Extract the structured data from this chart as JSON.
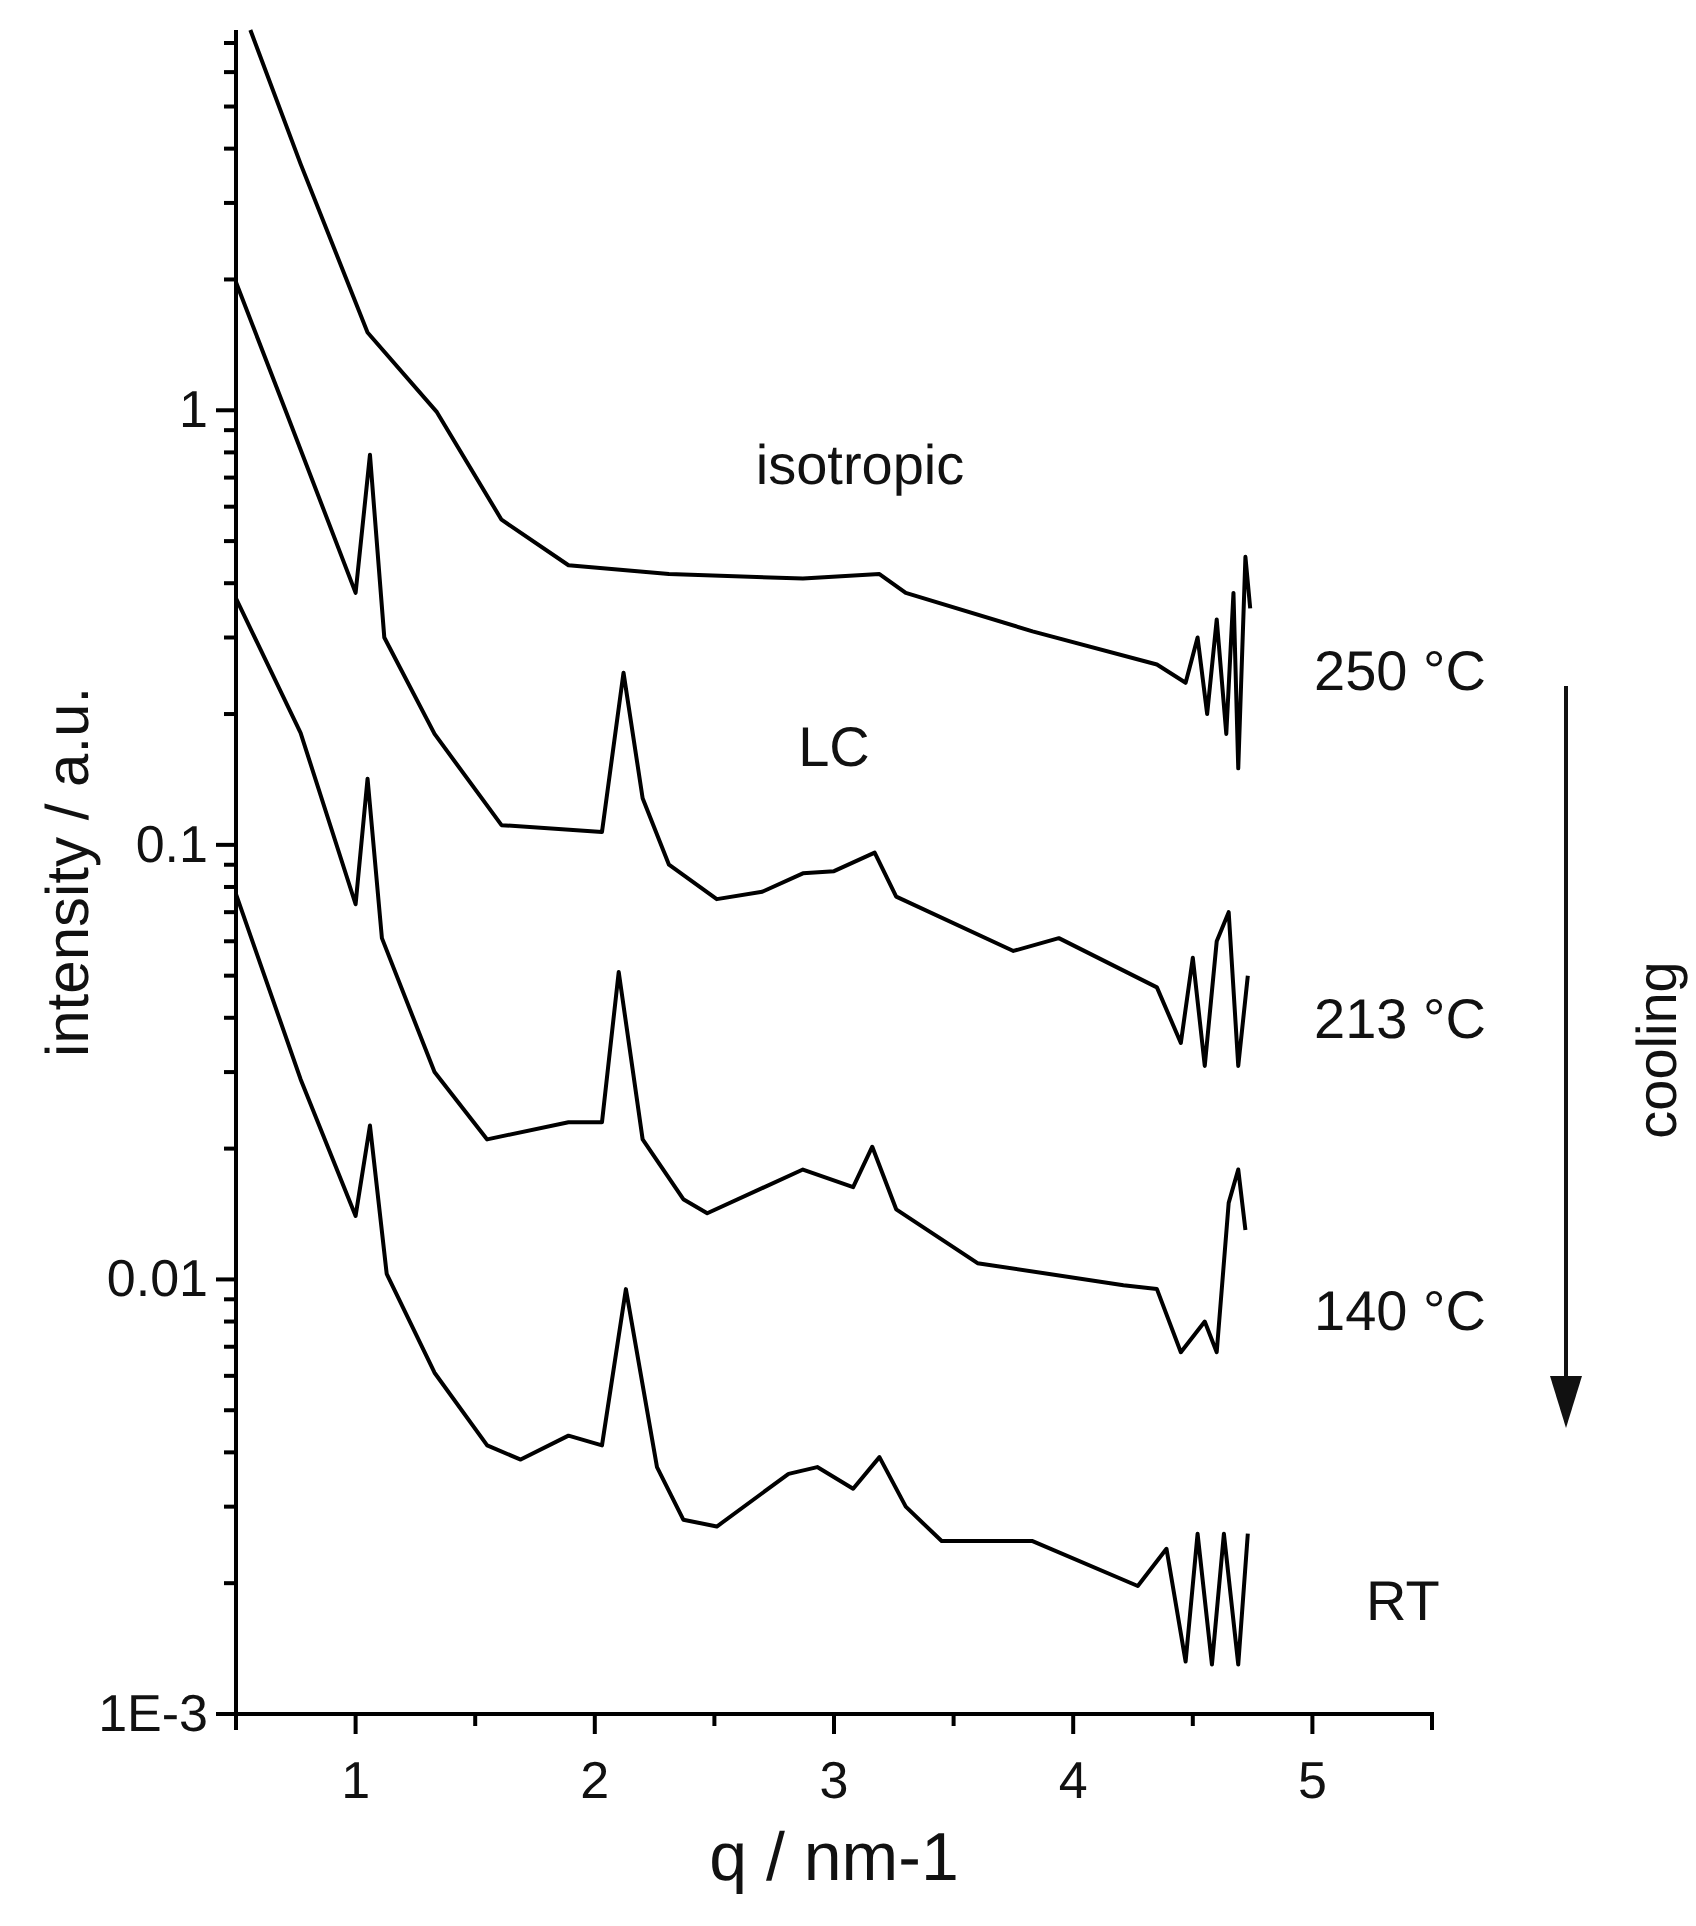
{
  "chart_data": {
    "type": "line",
    "xlabel": "q / nm-1",
    "ylabel": "intensity / a.u.",
    "log": "y",
    "grid": false,
    "legend": false,
    "marker": "none",
    "line_style": "solid",
    "xlim": [
      0.5,
      5.5
    ],
    "xticks": [
      1,
      {
        "value": 1.5,
        "label": null
      },
      2,
      {
        "value": 2.5,
        "label": null
      },
      3,
      {
        "value": 3.5,
        "label": null
      },
      4,
      {
        "value": 4.5,
        "label": null
      },
      5,
      {
        "value": 5.5,
        "label": null
      }
    ],
    "ylim": [
      0.001,
      7.5
    ],
    "yticks": [
      {
        "value": 0.001,
        "label": "1E-3"
      },
      {
        "value": 0.002,
        "label": null
      },
      {
        "value": 0.003,
        "label": null
      },
      {
        "value": 0.004,
        "label": null
      },
      {
        "value": 0.005,
        "label": null
      },
      {
        "value": 0.006,
        "label": null
      },
      {
        "value": 0.007,
        "label": null
      },
      {
        "value": 0.008,
        "label": null
      },
      {
        "value": 0.009,
        "label": null
      },
      0.01,
      {
        "value": 0.02,
        "label": null
      },
      {
        "value": 0.03,
        "label": null
      },
      {
        "value": 0.04,
        "label": null
      },
      {
        "value": 0.05,
        "label": null
      },
      {
        "value": 0.06,
        "label": null
      },
      {
        "value": 0.07,
        "label": null
      },
      {
        "value": 0.08,
        "label": null
      },
      {
        "value": 0.09,
        "label": null
      },
      0.1,
      {
        "value": 0.2,
        "label": null
      },
      {
        "value": 0.3,
        "label": null
      },
      {
        "value": 0.4,
        "label": null
      },
      {
        "value": 0.5,
        "label": null
      },
      {
        "value": 0.6,
        "label": null
      },
      {
        "value": 0.7,
        "label": null
      },
      {
        "value": 0.8,
        "label": null
      },
      {
        "value": 0.9,
        "label": null
      },
      1,
      {
        "value": 2,
        "label": null
      },
      {
        "value": 3,
        "label": null
      },
      {
        "value": 4,
        "label": null
      },
      {
        "value": 5,
        "label": null
      },
      {
        "value": 6,
        "label": null
      },
      {
        "value": 7,
        "label": null
      }
    ],
    "annotations": [
      "isotropic",
      "LC",
      "cooling"
    ],
    "series": [
      {
        "name": "250 °C",
        "color": "#000000",
        "x": [
          0.56,
          0.77,
          1.05,
          1.34,
          1.61,
          1.89,
          2.31,
          2.87,
          3.19,
          3.3,
          3.83,
          4.35,
          4.47,
          4.52,
          4.56,
          4.6,
          4.64,
          4.67,
          4.69,
          4.72,
          4.74
        ],
        "values": [
          7.5,
          3.69,
          1.51,
          0.99,
          0.56,
          0.44,
          0.42,
          0.41,
          0.42,
          0.38,
          0.31,
          0.26,
          0.236,
          0.3,
          0.2,
          0.33,
          0.18,
          0.38,
          0.15,
          0.46,
          0.35
        ]
      },
      {
        "name": "213 °C",
        "color": "#000000",
        "x": [
          0.5,
          0.71,
          1.0,
          1.06,
          1.12,
          1.33,
          1.61,
          2.03,
          2.12,
          2.2,
          2.31,
          2.51,
          2.7,
          2.87,
          3.0,
          3.17,
          3.26,
          3.75,
          3.94,
          4.35,
          4.45,
          4.5,
          4.55,
          4.6,
          4.65,
          4.69,
          4.73
        ],
        "values": [
          1.97,
          0.99,
          0.38,
          0.79,
          0.3,
          0.18,
          0.111,
          0.107,
          0.249,
          0.128,
          0.09,
          0.075,
          0.078,
          0.086,
          0.087,
          0.096,
          0.076,
          0.057,
          0.061,
          0.047,
          0.035,
          0.055,
          0.031,
          0.06,
          0.07,
          0.031,
          0.05
        ]
      },
      {
        "name": "140 °C",
        "color": "#000000",
        "x": [
          0.5,
          0.77,
          1.0,
          1.05,
          1.11,
          1.33,
          1.55,
          1.89,
          2.03,
          2.1,
          2.2,
          2.37,
          2.47,
          2.87,
          3.08,
          3.16,
          3.26,
          3.6,
          4.21,
          4.35,
          4.45,
          4.55,
          4.6,
          4.65,
          4.69,
          4.72
        ],
        "values": [
          0.369,
          0.181,
          0.073,
          0.142,
          0.061,
          0.03,
          0.021,
          0.023,
          0.023,
          0.051,
          0.021,
          0.0153,
          0.0142,
          0.0179,
          0.0163,
          0.0202,
          0.0145,
          0.0109,
          0.0097,
          0.0095,
          0.0068,
          0.008,
          0.0068,
          0.015,
          0.0179,
          0.013
        ]
      },
      {
        "name": "RT",
        "color": "#000000",
        "x": [
          0.5,
          0.77,
          1.0,
          1.06,
          1.13,
          1.33,
          1.55,
          1.69,
          1.89,
          2.03,
          2.13,
          2.26,
          2.37,
          2.51,
          2.81,
          2.93,
          3.08,
          3.19,
          3.3,
          3.45,
          3.83,
          4.27,
          4.39,
          4.47,
          4.52,
          4.58,
          4.63,
          4.69,
          4.73
        ],
        "values": [
          0.077,
          0.0289,
          0.014,
          0.0226,
          0.0103,
          0.0061,
          0.00415,
          0.00385,
          0.00437,
          0.00415,
          0.0095,
          0.0037,
          0.0028,
          0.0027,
          0.00357,
          0.0037,
          0.0033,
          0.0039,
          0.003,
          0.0025,
          0.0025,
          0.00197,
          0.0024,
          0.00132,
          0.0026,
          0.0013,
          0.0026,
          0.0013,
          0.0026
        ]
      }
    ]
  }
}
